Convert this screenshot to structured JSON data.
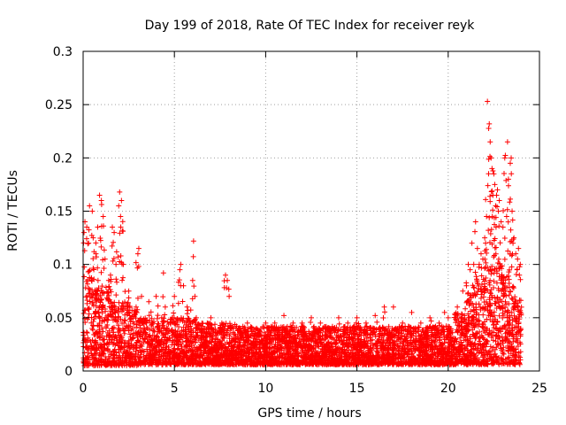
{
  "chart_data": {
    "type": "scatter",
    "title": "Day 199 of 2018, Rate Of TEC Index for receiver reyk",
    "xlabel": "GPS time / hours",
    "ylabel": "ROTI / TECUs",
    "xlim": [
      0,
      25
    ],
    "ylim": [
      0,
      0.3
    ],
    "xticks": [
      0,
      5,
      10,
      15,
      20,
      25
    ],
    "xtick_labels": [
      "0",
      "5",
      "10",
      "15",
      "20",
      "25"
    ],
    "yticks": [
      0,
      0.05,
      0.1,
      0.15,
      0.2,
      0.25,
      0.3
    ],
    "ytick_labels": [
      "0",
      "0.05",
      "0.1",
      "0.15",
      "0.2",
      "0.25",
      "0.3"
    ],
    "grid": true,
    "marker": "+",
    "color": "#ff0000",
    "x_data_range_hours": [
      0,
      24
    ],
    "series": [
      {
        "name": "ROTI",
        "notes_hourly_band": "dense cloud of ROTI values; baseline band roughly 0.005-0.04 TECU/min, elevated 0-3 h and 20.5-24 h",
        "points": [
          [
            0.05,
            0.13
          ],
          [
            0.1,
            0.14
          ],
          [
            0.2,
            0.135
          ],
          [
            0.3,
            0.12
          ],
          [
            0.35,
            0.155
          ],
          [
            0.5,
            0.15
          ],
          [
            0.55,
            0.125
          ],
          [
            0.7,
            0.11
          ],
          [
            0.8,
            0.135
          ],
          [
            0.9,
            0.165
          ],
          [
            1.0,
            0.16
          ],
          [
            1.1,
            0.145
          ],
          [
            1.2,
            0.105
          ],
          [
            1.4,
            0.085
          ],
          [
            1.5,
            0.09
          ],
          [
            1.6,
            0.135
          ],
          [
            1.7,
            0.13
          ],
          [
            1.8,
            0.1
          ],
          [
            1.95,
            0.155
          ],
          [
            2.0,
            0.168
          ],
          [
            2.05,
            0.145
          ],
          [
            2.1,
            0.16
          ],
          [
            2.2,
            0.1
          ],
          [
            2.5,
            0.075
          ],
          [
            3.0,
            0.11
          ],
          [
            3.05,
            0.115
          ],
          [
            3.2,
            0.07
          ],
          [
            3.6,
            0.065
          ],
          [
            4.0,
            0.07
          ],
          [
            4.4,
            0.092
          ],
          [
            4.5,
            0.06
          ],
          [
            5.0,
            0.07
          ],
          [
            5.3,
            0.095
          ],
          [
            5.35,
            0.1
          ],
          [
            5.5,
            0.08
          ],
          [
            5.7,
            0.06
          ],
          [
            6.0,
            0.085
          ],
          [
            6.05,
            0.122
          ],
          [
            6.2,
            0.05
          ],
          [
            6.8,
            0.045
          ],
          [
            7.0,
            0.05
          ],
          [
            7.6,
            0.045
          ],
          [
            7.8,
            0.09
          ],
          [
            7.9,
            0.085
          ],
          [
            8.0,
            0.07
          ],
          [
            8.5,
            0.04
          ],
          [
            9.0,
            0.045
          ],
          [
            9.5,
            0.04
          ],
          [
            10.0,
            0.045
          ],
          [
            10.5,
            0.045
          ],
          [
            11.0,
            0.052
          ],
          [
            11.5,
            0.045
          ],
          [
            12.0,
            0.045
          ],
          [
            12.5,
            0.05
          ],
          [
            13.0,
            0.045
          ],
          [
            13.5,
            0.04
          ],
          [
            14.0,
            0.05
          ],
          [
            14.5,
            0.045
          ],
          [
            15.0,
            0.05
          ],
          [
            15.5,
            0.045
          ],
          [
            16.0,
            0.052
          ],
          [
            16.5,
            0.06
          ],
          [
            17.0,
            0.06
          ],
          [
            17.5,
            0.045
          ],
          [
            18.0,
            0.055
          ],
          [
            18.5,
            0.045
          ],
          [
            19.0,
            0.05
          ],
          [
            19.5,
            0.045
          ],
          [
            19.8,
            0.055
          ],
          [
            20.0,
            0.05
          ],
          [
            20.5,
            0.06
          ],
          [
            20.8,
            0.075
          ],
          [
            21.0,
            0.08
          ],
          [
            21.1,
            0.1
          ],
          [
            21.2,
            0.095
          ],
          [
            21.3,
            0.12
          ],
          [
            21.4,
            0.1
          ],
          [
            21.5,
            0.14
          ],
          [
            21.6,
            0.115
          ],
          [
            21.7,
            0.1
          ],
          [
            21.8,
            0.11
          ],
          [
            21.9,
            0.105
          ],
          [
            22.0,
            0.125
          ],
          [
            22.05,
            0.12
          ],
          [
            22.1,
            0.145
          ],
          [
            22.15,
            0.253
          ],
          [
            22.25,
            0.232
          ],
          [
            22.3,
            0.215
          ],
          [
            22.35,
            0.2
          ],
          [
            22.4,
            0.19
          ],
          [
            22.45,
            0.165
          ],
          [
            22.5,
            0.185
          ],
          [
            22.55,
            0.175
          ],
          [
            22.6,
            0.155
          ],
          [
            22.65,
            0.165
          ],
          [
            22.7,
            0.17
          ],
          [
            22.75,
            0.15
          ],
          [
            22.8,
            0.16
          ],
          [
            22.9,
            0.14
          ],
          [
            23.0,
            0.135
          ],
          [
            23.1,
            0.2
          ],
          [
            23.2,
            0.145
          ],
          [
            23.25,
            0.215
          ],
          [
            23.3,
            0.18
          ],
          [
            23.4,
            0.195
          ],
          [
            23.45,
            0.2
          ],
          [
            23.5,
            0.15
          ],
          [
            23.55,
            0.12
          ],
          [
            23.6,
            0.125
          ],
          [
            23.7,
            0.11
          ],
          [
            23.8,
            0.105
          ],
          [
            23.85,
            0.115
          ],
          [
            23.9,
            0.09
          ],
          [
            23.95,
            0.1
          ]
        ]
      }
    ]
  }
}
